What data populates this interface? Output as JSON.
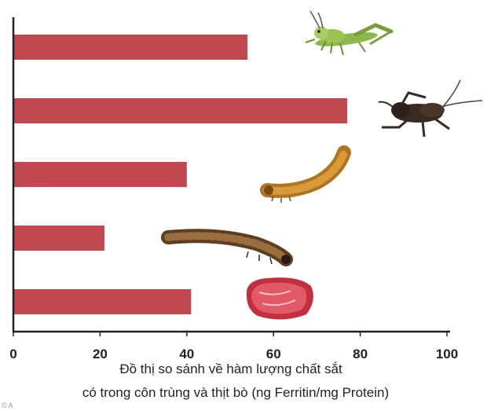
{
  "chart_data": {
    "type": "bar",
    "orientation": "horizontal",
    "categories": [
      "grasshopper",
      "cricket",
      "mealworm",
      "buffalo worm",
      "beef"
    ],
    "values": [
      54,
      77,
      40,
      21,
      41
    ],
    "x_ticks": [
      "0",
      "20",
      "40",
      "60",
      "80",
      "100"
    ],
    "xlim": [
      0,
      100
    ],
    "caption": [
      "Đồ thị so sánh về hàm lượng chất sắt",
      "có trong côn trùng và thịt bò (ng Ferritin/mg Protein)"
    ],
    "bar_color": "#c0494f",
    "grid": false,
    "legend": "none"
  },
  "icons": [
    "grasshopper-icon",
    "cricket-icon",
    "mealworm-icon",
    "buffalo-worm-icon",
    "beef-icon"
  ],
  "corner_mark": "© A"
}
